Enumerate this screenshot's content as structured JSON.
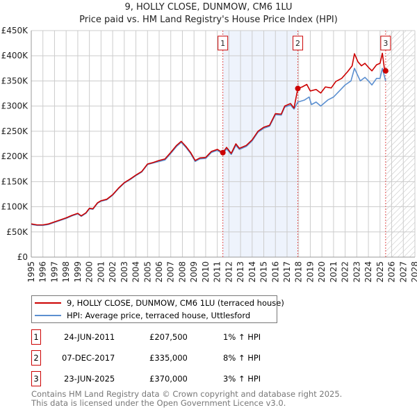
{
  "header": {
    "title": "9, HOLLY CLOSE, DUNMOW, CM6 1LU",
    "subtitle": "Price paid vs. HM Land Registry's House Price Index (HPI)"
  },
  "chart_data": {
    "type": "line",
    "title": "9, HOLLY CLOSE, DUNMOW, CM6 1LU",
    "subtitle": "Price paid vs. HM Land Registry's House Price Index (HPI)",
    "xlim": [
      1995,
      2028
    ],
    "ylim": [
      0,
      450000
    ],
    "x_ticks": [
      "1995",
      "1996",
      "1997",
      "1998",
      "1999",
      "2000",
      "2001",
      "2002",
      "2003",
      "2004",
      "2005",
      "2006",
      "2007",
      "2008",
      "2009",
      "2010",
      "2011",
      "2012",
      "2013",
      "2014",
      "2015",
      "2016",
      "2017",
      "2018",
      "2019",
      "2020",
      "2021",
      "2022",
      "2023",
      "2024",
      "2025",
      "2026",
      "2027",
      "2028"
    ],
    "y_ticks": [
      {
        "v": 0,
        "label": "£0"
      },
      {
        "v": 50000,
        "label": "£50K"
      },
      {
        "v": 100000,
        "label": "£100K"
      },
      {
        "v": 150000,
        "label": "£150K"
      },
      {
        "v": 200000,
        "label": "£200K"
      },
      {
        "v": 250000,
        "label": "£250K"
      },
      {
        "v": 300000,
        "label": "£300K"
      },
      {
        "v": 350000,
        "label": "£350K"
      },
      {
        "v": 400000,
        "label": "£400K"
      },
      {
        "v": 450000,
        "label": "£450K"
      }
    ],
    "grid": true,
    "colors": {
      "property": "#cc0000",
      "hpi": "#5b8fd0",
      "shade": "#eef3fc",
      "marker": "#cc0000"
    },
    "shaded_range": [
      2011.48,
      2017.93
    ],
    "forecast_from": 2025.5,
    "series": [
      {
        "name": "9, HOLLY CLOSE, DUNMOW, CM6 1LU (terraced house)",
        "x": [
          1995,
          1995.5,
          1996,
          1996.5,
          1997,
          1997.5,
          1998,
          1998.5,
          1999,
          1999.3,
          1999.7,
          2000,
          2000.3,
          2000.7,
          2001,
          2001.5,
          2002,
          2002.5,
          2003,
          2003.5,
          2004,
          2004.5,
          2005,
          2005.5,
          2006,
          2006.5,
          2007,
          2007.5,
          2007.9,
          2008.3,
          2008.7,
          2009.1,
          2009.5,
          2010,
          2010.5,
          2011,
          2011.48,
          2011.8,
          2012.2,
          2012.6,
          2012.9,
          2013.5,
          2014,
          2014.5,
          2015,
          2015.5,
          2016,
          2016.5,
          2016.8,
          2017.3,
          2017.6,
          2017.93,
          2018.3,
          2018.7,
          2019,
          2019.5,
          2019.9,
          2020.3,
          2020.8,
          2021.2,
          2021.7,
          2022.2,
          2022.6,
          2022.8,
          2023.1,
          2023.4,
          2023.7,
          2024,
          2024.3,
          2024.7,
          2025,
          2025.2,
          2025.4,
          2025.48
        ],
        "y": [
          66000,
          64000,
          64000,
          66000,
          70000,
          74000,
          78000,
          83000,
          87000,
          82000,
          88000,
          97000,
          96000,
          108000,
          112000,
          115000,
          124000,
          137000,
          148000,
          155000,
          163000,
          170000,
          185000,
          188000,
          192000,
          195000,
          208000,
          222000,
          230000,
          220000,
          208000,
          192000,
          197000,
          198000,
          210000,
          214000,
          207500,
          218000,
          206000,
          225000,
          216000,
          222000,
          233000,
          250000,
          258000,
          262000,
          285000,
          284000,
          300000,
          305000,
          296000,
          335000,
          338000,
          343000,
          330000,
          333000,
          326000,
          338000,
          336000,
          349000,
          355000,
          368000,
          380000,
          404000,
          388000,
          380000,
          385000,
          377000,
          370000,
          382000,
          385000,
          405000,
          370000,
          370000
        ]
      },
      {
        "name": "HPI: Average price, terraced house, Uttlesford",
        "x": [
          1995,
          1995.5,
          1996,
          1996.5,
          1997,
          1997.5,
          1998,
          1998.5,
          1999,
          1999.3,
          1999.7,
          2000,
          2000.3,
          2000.7,
          2001,
          2001.5,
          2002,
          2002.5,
          2003,
          2003.5,
          2004,
          2004.5,
          2005,
          2005.5,
          2006,
          2006.5,
          2007,
          2007.5,
          2007.9,
          2008.3,
          2008.7,
          2009.1,
          2009.5,
          2010,
          2010.5,
          2011,
          2011.48,
          2011.8,
          2012.2,
          2012.6,
          2012.9,
          2013.5,
          2014,
          2014.5,
          2015,
          2015.5,
          2016,
          2016.5,
          2016.8,
          2017.3,
          2017.6,
          2017.93,
          2018.5,
          2018.9,
          2019.1,
          2019.5,
          2019.9,
          2020.5,
          2021,
          2021.5,
          2022,
          2022.5,
          2022.8,
          2023.1,
          2023.3,
          2023.7,
          2024,
          2024.3,
          2024.7,
          2025,
          2025.2,
          2025.48
        ],
        "y": [
          65000,
          63000,
          63000,
          65000,
          69000,
          73000,
          77000,
          82000,
          86000,
          81000,
          87000,
          96000,
          95000,
          107000,
          111000,
          114000,
          123000,
          136000,
          147000,
          154000,
          162000,
          169000,
          184000,
          187000,
          190000,
          193000,
          206000,
          220000,
          228000,
          218000,
          206000,
          190000,
          195000,
          196000,
          208000,
          212000,
          205000,
          215000,
          204000,
          222000,
          214000,
          220000,
          231000,
          248000,
          256000,
          260000,
          283000,
          282000,
          298000,
          302000,
          294000,
          308000,
          312000,
          318000,
          303000,
          308000,
          300000,
          312000,
          318000,
          330000,
          342000,
          350000,
          375000,
          360000,
          350000,
          357000,
          350000,
          342000,
          355000,
          355000,
          375000,
          350000
        ]
      }
    ],
    "sales": [
      {
        "label": "1",
        "x": 2011.48,
        "y": 207500
      },
      {
        "label": "2",
        "x": 2017.93,
        "y": 335000
      },
      {
        "label": "3",
        "x": 2025.48,
        "y": 370000
      }
    ]
  },
  "legend": {
    "property": "9, HOLLY CLOSE, DUNMOW, CM6 1LU (terraced house)",
    "hpi": "HPI: Average price, terraced house, Uttlesford"
  },
  "sales_table": [
    {
      "num": "1",
      "date": "24-JUN-2011",
      "price": "£207,500",
      "hpi": "1% ↑ HPI"
    },
    {
      "num": "2",
      "date": "07-DEC-2017",
      "price": "£335,000",
      "hpi": "8% ↑ HPI"
    },
    {
      "num": "3",
      "date": "23-JUN-2025",
      "price": "£370,000",
      "hpi": "3% ↑ HPI"
    }
  ],
  "footer": {
    "line1": "Contains HM Land Registry data © Crown copyright and database right 2025.",
    "line2": "This data is licensed under the Open Government Licence v3.0."
  }
}
